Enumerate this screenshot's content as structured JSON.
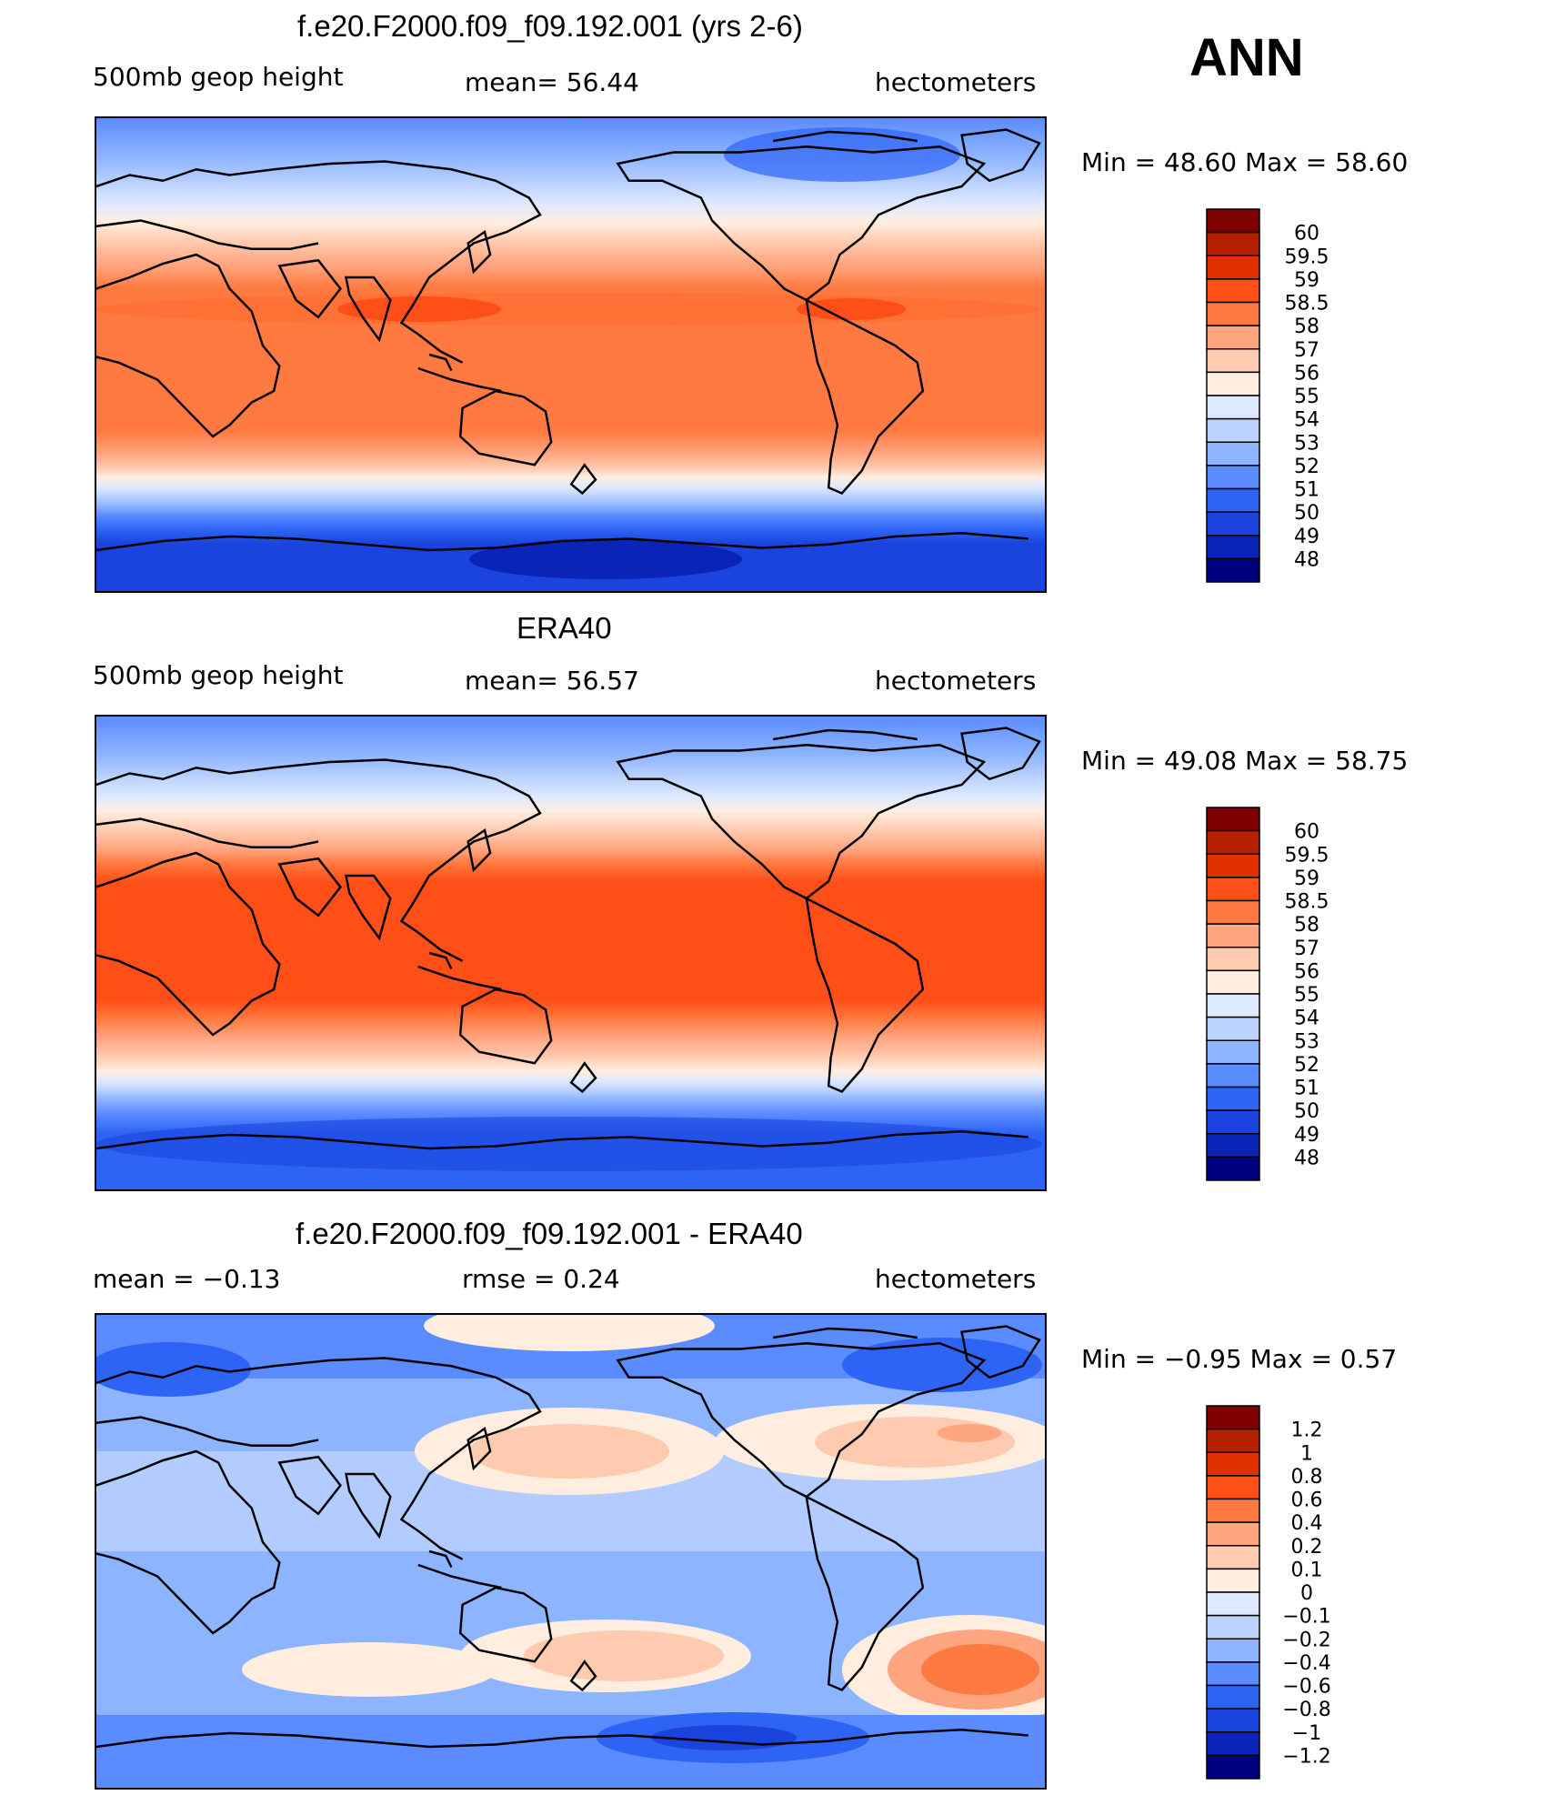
{
  "season": "ANN",
  "chart_data": [
    {
      "type": "heatmap",
      "title": "f.e20.F2000.f09_f09.192.001 (yrs 2-6)",
      "left_label": "500mb geop height",
      "center_label": "mean=   56.44",
      "units": "hectometers",
      "minmax": "Min =   48.60  Max =   58.60",
      "colorbar_levels": [
        "60",
        "59.5",
        "59",
        "58.5",
        "58",
        "57",
        "56",
        "55",
        "54",
        "53",
        "52",
        "51",
        "50",
        "49",
        "48"
      ],
      "colorbar_colors": [
        "#800000",
        "#b52000",
        "#e03000",
        "#ff4f18",
        "#ff7a40",
        "#ffa580",
        "#ffcbb0",
        "#ffeee0",
        "#dde9ff",
        "#bcd2ff",
        "#8db4ff",
        "#5b8cff",
        "#2e64f6",
        "#1a44dd",
        "#0a24b8",
        "#000080"
      ],
      "field": "north-south gradient: low (~48-50) at poles, high (~58-58.6) in tropics"
    },
    {
      "type": "heatmap",
      "title": "ERA40",
      "left_label": "500mb geop height",
      "center_label": "mean=   56.57",
      "units": "hectometers",
      "minmax": "Min =   49.08  Max =   58.75",
      "colorbar_levels": [
        "60",
        "59.5",
        "59",
        "58.5",
        "58",
        "57",
        "56",
        "55",
        "54",
        "53",
        "52",
        "51",
        "50",
        "49",
        "48"
      ],
      "colorbar_colors": [
        "#800000",
        "#b52000",
        "#e03000",
        "#ff4f18",
        "#ff7a40",
        "#ffa580",
        "#ffcbb0",
        "#ffeee0",
        "#dde9ff",
        "#bcd2ff",
        "#8db4ff",
        "#5b8cff",
        "#2e64f6",
        "#1a44dd",
        "#0a24b8",
        "#000080"
      ],
      "field": "north-south gradient: low (~49-50) at poles, high (~58.5-58.75) in tropics"
    },
    {
      "type": "heatmap",
      "title": "f.e20.F2000.f09_f09.192.001 - ERA40",
      "left_label": "mean =   −0.13",
      "center_label": "rmse =    0.24",
      "units": "hectometers",
      "minmax": "Min =   −0.95  Max =    0.57",
      "colorbar_levels": [
        "1.2",
        "1",
        "0.8",
        "0.6",
        "0.4",
        "0.2",
        "0.1",
        "0",
        "−0.1",
        "−0.2",
        "−0.4",
        "−0.6",
        "−0.8",
        "−1",
        "−1.2"
      ],
      "colorbar_colors": [
        "#800000",
        "#b52000",
        "#e03000",
        "#ff4f18",
        "#ff7a40",
        "#ffa580",
        "#ffcbb0",
        "#ffeee0",
        "#dde9ff",
        "#bcd2ff",
        "#8db4ff",
        "#5b8cff",
        "#2e64f6",
        "#1a44dd",
        "#0a24b8",
        "#000080"
      ],
      "field": "difference: mostly slightly negative; positive anomalies (~0.4) over N Pacific, N Atlantic, S Pacific, S Atlantic"
    }
  ]
}
